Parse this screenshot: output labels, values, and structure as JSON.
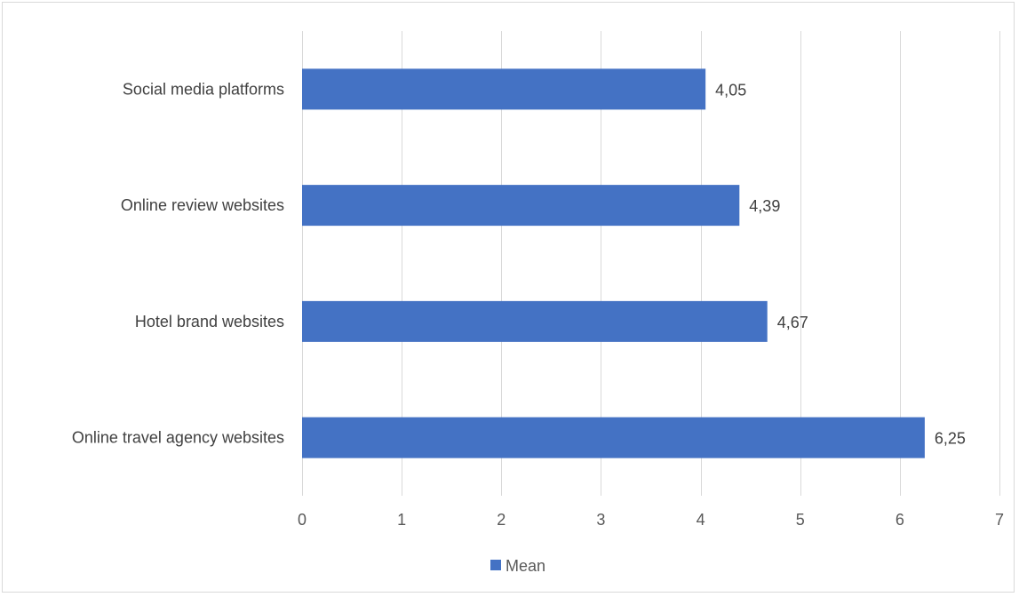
{
  "chart_data": {
    "type": "bar",
    "orientation": "horizontal",
    "categories": [
      "Social media platforms",
      "Online review websites",
      "Hotel brand websites",
      "Online travel agency websites"
    ],
    "series": [
      {
        "name": "Mean",
        "values": [
          4.05,
          4.39,
          4.67,
          6.25
        ],
        "labels": [
          "4,05",
          "4,39",
          "4,67",
          "6,25"
        ],
        "color": "#4472c4"
      }
    ],
    "x_ticks": [
      "0",
      "1",
      "2",
      "3",
      "4",
      "5",
      "6",
      "7"
    ],
    "xlim": [
      0,
      7
    ],
    "grid": true,
    "legend": "bottom"
  }
}
